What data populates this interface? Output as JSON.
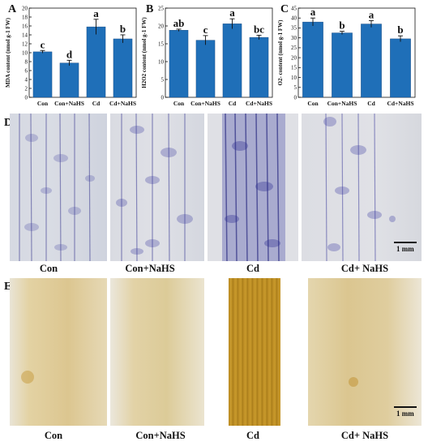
{
  "panels": {
    "A": "A",
    "B": "B",
    "C": "C",
    "D": "D",
    "E": "E"
  },
  "chart_data": [
    {
      "type": "bar",
      "panel": "A",
      "categories": [
        "Con",
        "Con+NaHS",
        "Cd",
        "Cd+NaHS"
      ],
      "values": [
        10.2,
        7.7,
        15.8,
        13.1
      ],
      "errors": [
        0.3,
        0.6,
        1.7,
        0.9
      ],
      "significance": [
        "c",
        "d",
        "a",
        "b"
      ],
      "ylabel": "MDA content (nmol g-1 FW)",
      "ylim": [
        0,
        20
      ],
      "yticks": [
        0,
        2,
        4,
        6,
        8,
        10,
        12,
        14,
        16,
        18,
        20
      ],
      "color": "#1f6fb8"
    },
    {
      "type": "bar",
      "panel": "B",
      "categories": [
        "Con",
        "Con+NaHS",
        "Cd",
        "Cd+NaHS"
      ],
      "values": [
        18.8,
        16.0,
        20.6,
        16.8
      ],
      "errors": [
        0.3,
        1.3,
        1.4,
        0.6
      ],
      "significance": [
        "ab",
        "c",
        "a",
        "bc"
      ],
      "ylabel": "H2O2 content (nmol g-1 FW)",
      "ylim": [
        0,
        25
      ],
      "yticks": [
        0,
        5,
        10,
        15,
        20,
        25
      ],
      "color": "#1f6fb8"
    },
    {
      "type": "bar",
      "panel": "C",
      "categories": [
        "Con",
        "Con+NaHS",
        "Cd",
        "Cd+NaHS"
      ],
      "values": [
        38.0,
        32.5,
        37.0,
        29.5
      ],
      "errors": [
        2.0,
        0.8,
        1.7,
        1.5
      ],
      "significance": [
        "a",
        "b",
        "a",
        "b"
      ],
      "ylabel": "O2- content (nmol g-1 FW)",
      "ylim": [
        0,
        45
      ],
      "yticks": [
        0,
        5,
        10,
        15,
        20,
        25,
        30,
        35,
        40,
        45
      ],
      "color": "#1f6fb8"
    }
  ],
  "photos_D": {
    "labels": [
      "Con",
      "Con+NaHS",
      "Cd",
      "Cd+ NaHS"
    ],
    "scale": "1 mm"
  },
  "photos_E": {
    "labels": [
      "Con",
      "Con+NaHS",
      "Cd",
      "Cd+ NaHS"
    ],
    "scale": "1 mm"
  }
}
